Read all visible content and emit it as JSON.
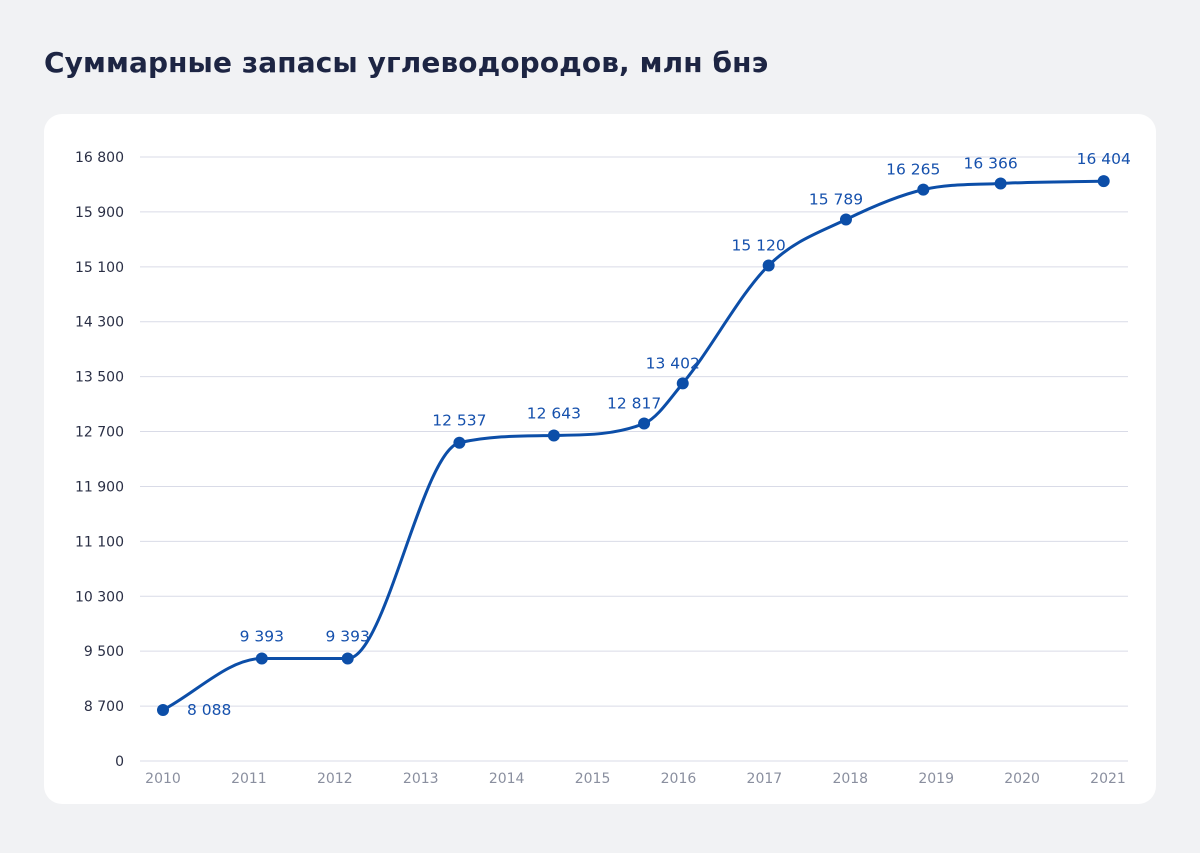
{
  "title": "Суммарные запасы углеводородов, млн бнэ",
  "colors": {
    "background": "#f1f2f4",
    "card": "#ffffff",
    "line": "#0c4ea8",
    "label": "#1651ad",
    "grid": "#d9dbe7"
  },
  "chart_data": {
    "type": "line",
    "title": "Суммарные запасы углеводородов, млн бнэ",
    "xlabel": "",
    "ylabel": "",
    "grid": true,
    "legend": "none",
    "x_ticks": [
      "2010",
      "2011",
      "2012",
      "2013",
      "2014",
      "2015",
      "2016",
      "2017",
      "2018",
      "2019",
      "2020",
      "2021"
    ],
    "y_ticks": [
      {
        "value": 0,
        "label": "0"
      },
      {
        "value": 8700,
        "label": "8 700"
      },
      {
        "value": 9500,
        "label": "9 500"
      },
      {
        "value": 10300,
        "label": "10 300"
      },
      {
        "value": 11100,
        "label": "11 100"
      },
      {
        "value": 11900,
        "label": "11 900"
      },
      {
        "value": 12700,
        "label": "12 700"
      },
      {
        "value": 13500,
        "label": "13 500"
      },
      {
        "value": 14300,
        "label": "14 300"
      },
      {
        "value": 15100,
        "label": "15 100"
      },
      {
        "value": 15900,
        "label": "15 900"
      },
      {
        "value": 16800,
        "label": "16 800"
      }
    ],
    "points": [
      {
        "x": 2010.0,
        "y": 8088,
        "label": "8 088",
        "label_pos": "right"
      },
      {
        "x": 2011.15,
        "y": 9393,
        "label": "9 393",
        "label_pos": "above"
      },
      {
        "x": 2012.15,
        "y": 9393,
        "label": "9 393",
        "label_pos": "above"
      },
      {
        "x": 2013.45,
        "y": 12537,
        "label": "12 537",
        "label_pos": "above"
      },
      {
        "x": 2014.55,
        "y": 12643,
        "label": "12 643",
        "label_pos": "above"
      },
      {
        "x": 2015.6,
        "y": 12817,
        "label": "12 817",
        "label_pos": "above-left"
      },
      {
        "x": 2016.05,
        "y": 13402,
        "label": "13 402",
        "label_pos": "above-left"
      },
      {
        "x": 2017.05,
        "y": 15120,
        "label": "15 120",
        "label_pos": "above-left"
      },
      {
        "x": 2017.95,
        "y": 15789,
        "label": "15 789",
        "label_pos": "above-left"
      },
      {
        "x": 2018.85,
        "y": 16265,
        "label": "16 265",
        "label_pos": "above-left"
      },
      {
        "x": 2019.75,
        "y": 16366,
        "label": "16 366",
        "label_pos": "above-left"
      },
      {
        "x": 2020.95,
        "y": 16404,
        "label": "16 404",
        "label_pos": "above"
      }
    ]
  }
}
